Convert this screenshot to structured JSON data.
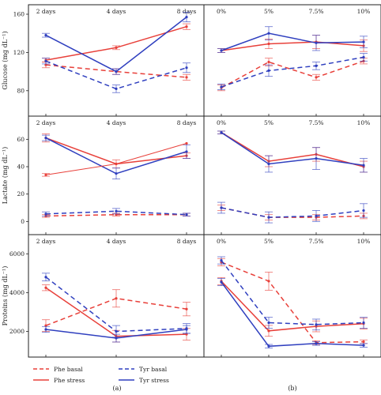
{
  "chart_data": [
    {
      "type": "line",
      "panel": "a-top",
      "categories": [
        "2 days",
        "4 days",
        "8 days"
      ],
      "ylabel": "Glucose (mg dL⁻¹)",
      "ylim": [
        60,
        160
      ],
      "yticks": [
        80,
        120,
        160
      ],
      "grid": false,
      "series": [
        {
          "name": "Phe basal",
          "key": "phe_basal",
          "values": [
            107,
            100,
            94
          ],
          "err": [
            3,
            3,
            3
          ]
        },
        {
          "name": "Phe stress",
          "key": "phe_stress",
          "values": [
            112,
            125,
            147
          ],
          "err": [
            2,
            2,
            3
          ]
        },
        {
          "name": "Tyr basal",
          "key": "tyr_basal",
          "values": [
            111,
            82,
            104
          ],
          "err": [
            3,
            4,
            5
          ]
        },
        {
          "name": "Tyr stress",
          "key": "tyr_stress",
          "values": [
            138,
            100,
            157
          ],
          "err": [
            2,
            3,
            5
          ]
        }
      ]
    },
    {
      "type": "line",
      "panel": "b-top",
      "categories": [
        "0%",
        "5%",
        "7.5%",
        "10%"
      ],
      "ylabel": "",
      "ylim": [
        60,
        160
      ],
      "yticks": [],
      "grid": false,
      "series": [
        {
          "name": "Phe basal",
          "key": "phe_basal",
          "values": [
            83,
            110,
            94,
            111
          ],
          "err": [
            3,
            4,
            3,
            3
          ]
        },
        {
          "name": "Phe stress",
          "key": "phe_stress",
          "values": [
            122,
            129,
            131,
            127
          ],
          "err": [
            2,
            5,
            7,
            6
          ]
        },
        {
          "name": "Tyr basal",
          "key": "tyr_basal",
          "values": [
            84,
            101,
            106,
            115
          ],
          "err": [
            3,
            6,
            4,
            4
          ]
        },
        {
          "name": "Tyr stress",
          "key": "tyr_stress",
          "values": [
            122,
            140,
            130,
            131
          ],
          "err": [
            2,
            7,
            8,
            6
          ]
        }
      ]
    },
    {
      "type": "line",
      "panel": "a-mid",
      "categories": [
        "2 days",
        "4 days",
        "8 days"
      ],
      "ylabel": "Lactate (mg dL⁻¹)",
      "ylim": [
        -5,
        70
      ],
      "yticks": [
        0,
        20,
        40,
        60
      ],
      "grid": false,
      "series": [
        {
          "name": "Phe basal",
          "key": "phe_basal",
          "values": [
            4,
            5,
            5
          ],
          "err": [
            1,
            1,
            1
          ]
        },
        {
          "name": "Phe stress",
          "key": "phe_stress",
          "values": [
            61,
            42,
            48
          ],
          "err": [
            3,
            3,
            2
          ]
        },
        {
          "name": "Tyr basal",
          "key": "tyr_basal",
          "values": [
            5.5,
            7.5,
            5
          ],
          "err": [
            1.5,
            2,
            1
          ]
        },
        {
          "name": "Tyr stress",
          "key": "tyr_stress",
          "values": [
            61,
            35,
            51
          ],
          "err": [
            2,
            4,
            5
          ]
        }
      ],
      "extra_series": [
        {
          "key": "phe_stress",
          "values": [
            34,
            42,
            57
          ],
          "err": [
            1,
            0,
            0
          ]
        }
      ]
    },
    {
      "type": "line",
      "panel": "b-mid",
      "categories": [
        "0%",
        "5%",
        "7.5%",
        "10%"
      ],
      "ylabel": "",
      "ylim": [
        -5,
        70
      ],
      "yticks": [],
      "grid": false,
      "series": [
        {
          "name": "Phe basal",
          "key": "phe_basal",
          "values": [
            10,
            3,
            3,
            4
          ],
          "err": [
            2,
            2,
            2,
            2
          ]
        },
        {
          "name": "Phe stress",
          "key": "phe_stress",
          "values": [
            65,
            44,
            49,
            40
          ],
          "err": [
            1,
            4,
            5,
            4
          ]
        },
        {
          "name": "Tyr basal",
          "key": "tyr_basal",
          "values": [
            10,
            3,
            4,
            8
          ],
          "err": [
            4,
            4,
            4,
            5
          ]
        },
        {
          "name": "Tyr stress",
          "key": "tyr_stress",
          "values": [
            65,
            42,
            46,
            41
          ],
          "err": [
            1,
            6,
            8,
            5
          ]
        }
      ]
    },
    {
      "type": "line",
      "panel": "a-bot",
      "categories": [
        "2 days",
        "4 days",
        "8 days"
      ],
      "ylabel": "Proteins (mg dL⁻¹)",
      "ylim": [
        1000,
        6500
      ],
      "yticks": [
        2000,
        4000,
        6000
      ],
      "grid": false,
      "series": [
        {
          "name": "Phe basal",
          "key": "phe_basal",
          "values": [
            2300,
            3700,
            3150
          ],
          "err": [
            300,
            450,
            350
          ]
        },
        {
          "name": "Phe stress",
          "key": "phe_stress",
          "values": [
            4250,
            1750,
            1850
          ],
          "err": [
            150,
            300,
            300
          ]
        },
        {
          "name": "Tyr basal",
          "key": "tyr_basal",
          "values": [
            4800,
            2000,
            2150
          ],
          "err": [
            200,
            300,
            250
          ]
        },
        {
          "name": "Tyr stress",
          "key": "tyr_stress",
          "values": [
            2100,
            1650,
            2100
          ],
          "err": [
            150,
            200,
            200
          ]
        }
      ]
    },
    {
      "type": "line",
      "panel": "b-bot",
      "categories": [
        "0%",
        "5%",
        "7.5%",
        "10%"
      ],
      "ylabel": "",
      "ylim": [
        600,
        6500
      ],
      "yticks": [],
      "grid": false,
      "series": [
        {
          "name": "Phe basal",
          "key": "phe_basal",
          "values": [
            5500,
            4450,
            1050,
            1100
          ],
          "err": [
            200,
            500,
            100,
            100
          ]
        },
        {
          "name": "Phe stress",
          "key": "phe_stress",
          "values": [
            4450,
            1700,
            1950,
            2100
          ],
          "err": [
            200,
            300,
            300,
            300
          ]
        },
        {
          "name": "Tyr basal",
          "key": "tyr_basal",
          "values": [
            5600,
            2150,
            2050,
            2150
          ],
          "err": [
            200,
            300,
            300,
            300
          ]
        },
        {
          "name": "Tyr stress",
          "key": "tyr_stress",
          "values": [
            4400,
            850,
            1000,
            900
          ],
          "err": [
            200,
            100,
            100,
            100
          ]
        }
      ]
    }
  ],
  "legend": [
    {
      "key": "phe_basal",
      "label": "Phe basal"
    },
    {
      "key": "phe_stress",
      "label": "Phe stress"
    },
    {
      "key": "tyr_basal",
      "label": "Tyr basal"
    },
    {
      "key": "tyr_stress",
      "label": "Tyr stress"
    }
  ],
  "series_styles": {
    "phe_basal": {
      "color": "#e8403a",
      "dash": true
    },
    "phe_stress": {
      "color": "#e8403a",
      "dash": false
    },
    "tyr_basal": {
      "color": "#2f3fbf",
      "dash": true
    },
    "tyr_stress": {
      "color": "#2f3fbf",
      "dash": false
    }
  },
  "panel_labels": {
    "a": "(a)",
    "b": "(b)"
  }
}
